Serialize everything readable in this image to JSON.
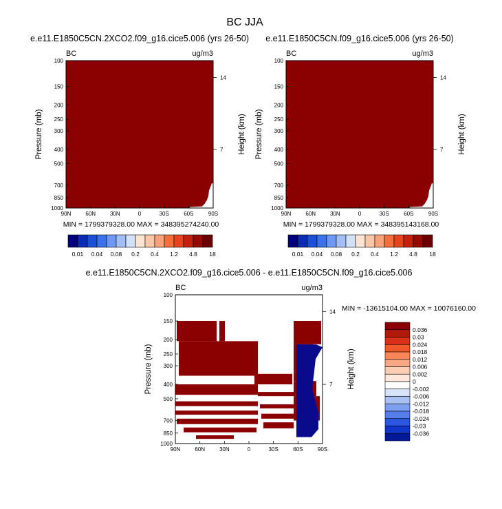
{
  "figure": {
    "title": "BC JJA"
  },
  "colors": {
    "fill": "#8b0000",
    "blue": "#0a0a8c"
  },
  "chart_data": [
    {
      "type": "heatmap",
      "id": "top-left",
      "title": "e.e11.E1850C5CN.2XCO2.f09_g16.cice5.006 (yrs 26-50)",
      "left_label": "BC",
      "right_label": "ug/m3",
      "ylabel": "Pressure (mb)",
      "ylabel_right": "Height (km)",
      "x_ticks": [
        "90N",
        "60N",
        "30N",
        "0",
        "30S",
        "60S",
        "90S"
      ],
      "y_ticks": [
        "100",
        "150",
        "200",
        "250",
        "300",
        "400",
        "500",
        "700",
        "850",
        "1000"
      ],
      "y_right_ticks": [
        "14",
        "7"
      ],
      "minmax_text": "MIN = 1799379328.00   MAX = 348395274240.00",
      "colorbar": {
        "labels": [
          "0.01",
          "0.04",
          "0.08",
          "0.2",
          "0.4",
          "1.2",
          "4.8",
          "18"
        ],
        "colors": [
          "#00007f",
          "#0c2bb3",
          "#1a4fd6",
          "#3a72ec",
          "#6d98f5",
          "#a3bdf7",
          "#d3e1f8",
          "#fbe4d2",
          "#f8c7a8",
          "#f7a27a",
          "#f46e3c",
          "#e8431e",
          "#c3200e",
          "#960a00",
          "#6a0000"
        ]
      }
    },
    {
      "type": "heatmap",
      "id": "top-right",
      "title": "e.e11.E1850C5CN.f09_g16.cice5.006 (yrs 26-50)",
      "left_label": "BC",
      "right_label": "ug/m3",
      "ylabel": "Pressure (mb)",
      "ylabel_right": "Height (km)",
      "x_ticks": [
        "90N",
        "60N",
        "30N",
        "0",
        "30S",
        "60S",
        "90S"
      ],
      "y_ticks": [
        "100",
        "150",
        "200",
        "250",
        "300",
        "400",
        "500",
        "700",
        "850",
        "1000"
      ],
      "y_right_ticks": [
        "14",
        "7"
      ],
      "minmax_text": "MIN = 1799379328.00   MAX = 348395143168.00",
      "colorbar": {
        "labels": [
          "0.01",
          "0.04",
          "0.08",
          "0.2",
          "0.4",
          "1.2",
          "4.8",
          "18"
        ],
        "colors": [
          "#00007f",
          "#0c2bb3",
          "#1a4fd6",
          "#3a72ec",
          "#6d98f5",
          "#a3bdf7",
          "#d3e1f8",
          "#fbe4d2",
          "#f8c7a8",
          "#f7a27a",
          "#f46e3c",
          "#e8431e",
          "#c3200e",
          "#960a00",
          "#6a0000"
        ]
      }
    },
    {
      "type": "heatmap",
      "id": "bottom",
      "title": "e.e11.E1850C5CN.2XCO2.f09_g16.cice5.006 - e.e11.E1850C5CN.f09_g16.cice5.006",
      "left_label": "BC",
      "right_label": "ug/m3",
      "ylabel": "Pressure (mb)",
      "ylabel_right": "Height (km)",
      "x_ticks": [
        "90N",
        "60N",
        "30N",
        "0",
        "30S",
        "60S",
        "90S"
      ],
      "y_ticks": [
        "100",
        "150",
        "200",
        "250",
        "300",
        "400",
        "500",
        "700",
        "850",
        "1000"
      ],
      "y_right_ticks": [
        "14",
        "7"
      ],
      "minmax_text": "MIN = -13615104.00   MAX = 10076160.00",
      "colorbar": {
        "labels": [
          "0.036",
          "0.03",
          "0.024",
          "0.018",
          "0.012",
          "0.006",
          "0.002",
          "0",
          "-0.002",
          "-0.006",
          "-0.012",
          "-0.018",
          "-0.024",
          "-0.03",
          "-0.036"
        ],
        "colors": [
          "#8b0000",
          "#b11a0a",
          "#d8301a",
          "#ef5a2a",
          "#f88656",
          "#f8a886",
          "#fbcdb2",
          "#fde7da",
          "#ffffff",
          "#d6e2f7",
          "#a8c1f2",
          "#7e9ff0",
          "#557eec",
          "#2b56e0",
          "#1035c8",
          "#001a9a"
        ]
      }
    }
  ]
}
